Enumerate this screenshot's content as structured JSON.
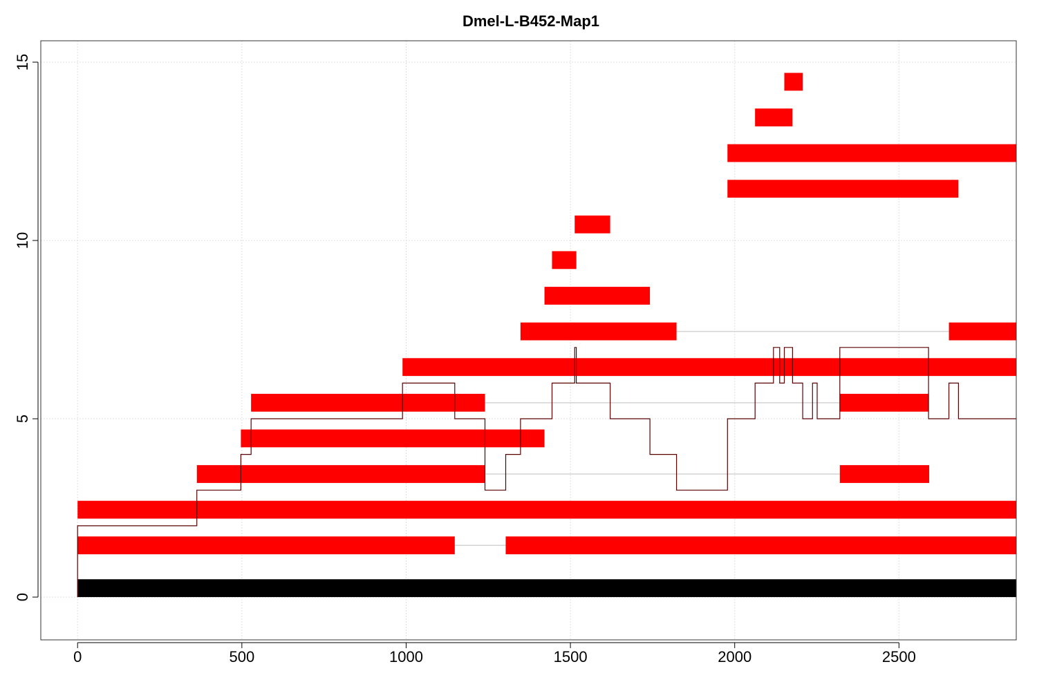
{
  "chart_data": {
    "type": "bar",
    "title": "Dmel-L-B452-Map1",
    "xlabel": "",
    "ylabel": "",
    "xlim": [
      -112,
      2857
    ],
    "ylim": [
      -1.2,
      15.6
    ],
    "x_ticks": [
      0,
      500,
      1000,
      1500,
      2000,
      2500
    ],
    "y_ticks": [
      0,
      5,
      10,
      15
    ],
    "grid": true,
    "colors": {
      "segment": "#ff0000",
      "reference": "#000000",
      "connector": "#d3d3d3",
      "coverage": "#5a0000",
      "grid": "#e0e0e0"
    },
    "reference_bar": {
      "start": 0,
      "end": 2857,
      "y0": 0,
      "y1": 0.5
    },
    "segments": [
      {
        "y": 1.2,
        "parts": [
          [
            0,
            1148
          ],
          [
            1303,
            2857
          ]
        ]
      },
      {
        "y": 2.2,
        "parts": [
          [
            0,
            2857
          ]
        ]
      },
      {
        "y": 3.2,
        "parts": [
          [
            363,
            1240
          ],
          [
            2320,
            2592
          ]
        ]
      },
      {
        "y": 4.2,
        "parts": [
          [
            497,
            1421
          ]
        ]
      },
      {
        "y": 5.2,
        "parts": [
          [
            528,
            1240
          ],
          [
            2320,
            2590
          ]
        ]
      },
      {
        "y": 6.2,
        "parts": [
          [
            989,
            2857
          ]
        ]
      },
      {
        "y": 7.2,
        "parts": [
          [
            1348,
            1823
          ],
          [
            2652,
            2857
          ]
        ]
      },
      {
        "y": 8.2,
        "parts": [
          [
            1421,
            1742
          ]
        ]
      },
      {
        "y": 9.2,
        "parts": [
          [
            1444,
            1518
          ]
        ]
      },
      {
        "y": 10.2,
        "parts": [
          [
            1513,
            1621
          ]
        ]
      },
      {
        "y": 11.2,
        "parts": [
          [
            1978,
            2681
          ]
        ]
      },
      {
        "y": 12.2,
        "parts": [
          [
            1978,
            2857
          ]
        ]
      },
      {
        "y": 13.2,
        "parts": [
          [
            2062,
            2176
          ]
        ]
      },
      {
        "y": 14.2,
        "parts": [
          [
            2151,
            2207
          ]
        ]
      }
    ],
    "coverage": [
      [
        0,
        0
      ],
      [
        0,
        2
      ],
      [
        363,
        2
      ],
      [
        363,
        3
      ],
      [
        497,
        3
      ],
      [
        497,
        4
      ],
      [
        528,
        4
      ],
      [
        528,
        5
      ],
      [
        989,
        5
      ],
      [
        989,
        6
      ],
      [
        1148,
        6
      ],
      [
        1148,
        5
      ],
      [
        1240,
        5
      ],
      [
        1240,
        3
      ],
      [
        1303,
        3
      ],
      [
        1303,
        4
      ],
      [
        1348,
        4
      ],
      [
        1348,
        5
      ],
      [
        1444,
        5
      ],
      [
        1444,
        6
      ],
      [
        1513,
        6
      ],
      [
        1513,
        7
      ],
      [
        1518,
        7
      ],
      [
        1518,
        6
      ],
      [
        1621,
        6
      ],
      [
        1621,
        5
      ],
      [
        1742,
        5
      ],
      [
        1742,
        4
      ],
      [
        1823,
        4
      ],
      [
        1823,
        3
      ],
      [
        1978,
        3
      ],
      [
        1978,
        5
      ],
      [
        2062,
        5
      ],
      [
        2062,
        6
      ],
      [
        2118,
        6
      ],
      [
        2118,
        7
      ],
      [
        2137,
        7
      ],
      [
        2137,
        6
      ],
      [
        2151,
        6
      ],
      [
        2151,
        7
      ],
      [
        2176,
        7
      ],
      [
        2176,
        6
      ],
      [
        2207,
        6
      ],
      [
        2207,
        5
      ],
      [
        2237,
        5
      ],
      [
        2237,
        6
      ],
      [
        2251,
        6
      ],
      [
        2251,
        5
      ],
      [
        2320,
        5
      ],
      [
        2320,
        7
      ],
      [
        2590,
        7
      ],
      [
        2590,
        5
      ],
      [
        2652,
        5
      ],
      [
        2652,
        6
      ],
      [
        2681,
        6
      ],
      [
        2681,
        5
      ],
      [
        2857,
        5
      ]
    ]
  }
}
